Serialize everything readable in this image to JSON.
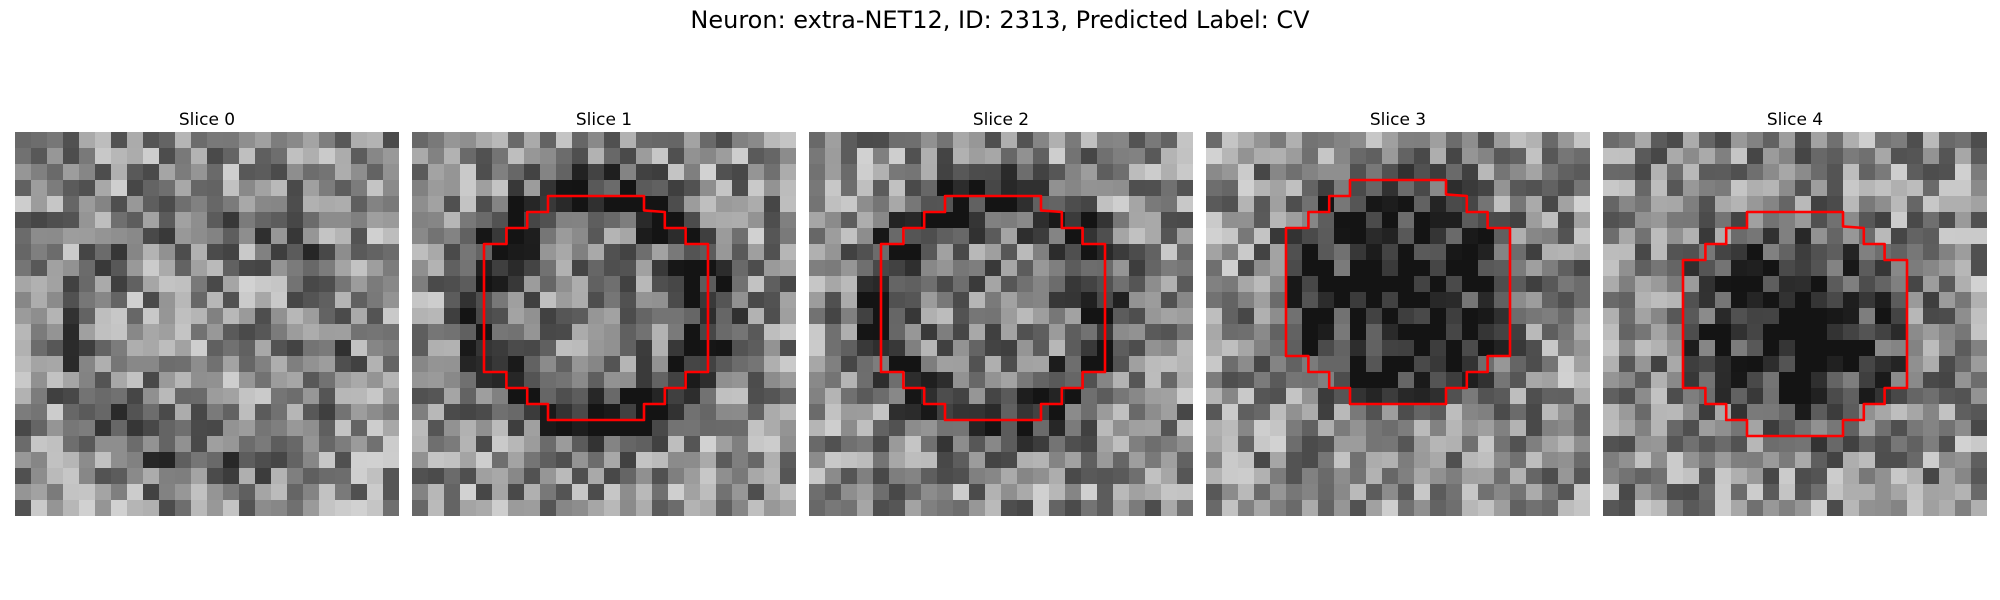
{
  "figure": {
    "title": "Neuron: extra-NET12, ID: 2313, Predicted Label: CV"
  },
  "panels": [
    {
      "label": "Slice 0",
      "has_contour": false
    },
    {
      "label": "Slice 1",
      "has_contour": true
    },
    {
      "label": "Slice 2",
      "has_contour": true
    },
    {
      "label": "Slice 3",
      "has_contour": true
    },
    {
      "label": "Slice 4",
      "has_contour": true
    }
  ],
  "colors": {
    "contour": "#ff0000",
    "background": "#ffffff"
  }
}
